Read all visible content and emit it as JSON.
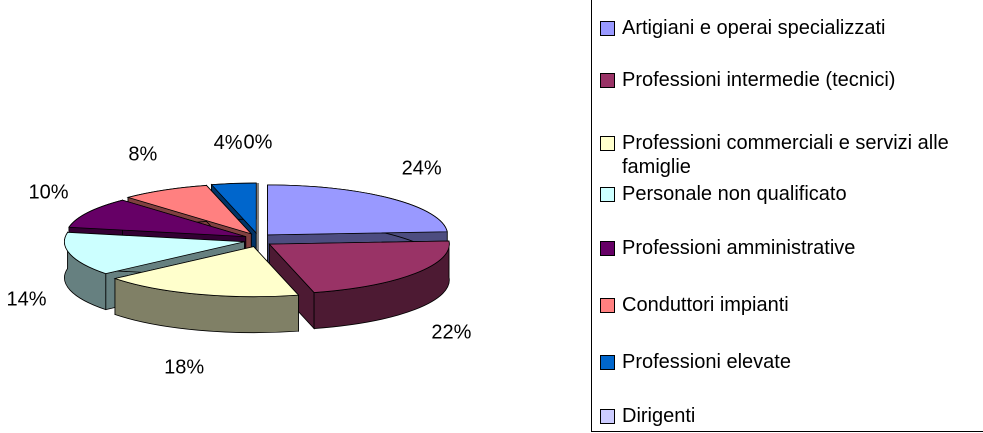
{
  "chart_data": {
    "type": "pie3d",
    "categories": [
      "Artigiani e operai specializzati",
      "Professioni intermedie (tecnici)",
      "Professioni commerciali e servizi alle famiglie",
      "Personale non qualificato",
      "Professioni amministrative",
      "Conduttori impianti",
      "Professioni elevate",
      "Dirigenti"
    ],
    "values": [
      24,
      22,
      18,
      14,
      10,
      8,
      4,
      0
    ],
    "value_labels": [
      "24%",
      "22%",
      "18%",
      "14%",
      "10%",
      "8%",
      "4%",
      "0%"
    ],
    "colors": [
      "#9999ff",
      "#993366",
      "#ffffcc",
      "#ccffff",
      "#660066",
      "#ff8080",
      "#0066cc",
      "#ccccff"
    ]
  }
}
